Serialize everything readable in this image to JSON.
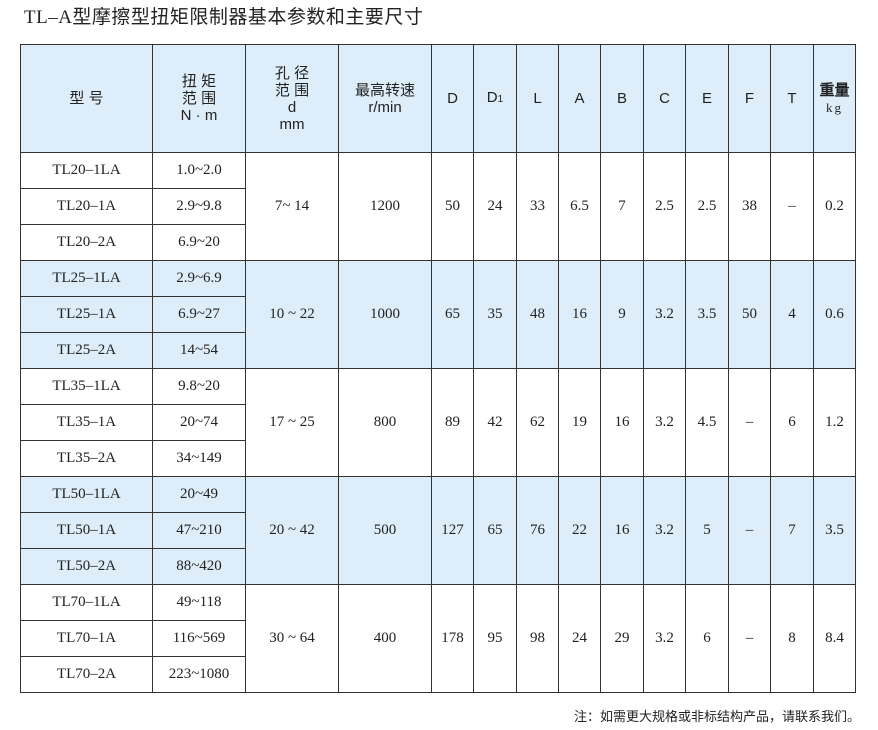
{
  "title": "TL–A型摩擦型扭矩限制器基本参数和主要尺寸",
  "headers": {
    "model": "型 号",
    "torque": [
      "扭 矩",
      "范 围",
      "N · m"
    ],
    "bore": [
      "孔 径",
      "范 围",
      "d",
      "mm"
    ],
    "speed": [
      "最高转速",
      "r/min"
    ],
    "D": "D",
    "D1": "D",
    "D1_sub": "1",
    "L": "L",
    "A": "A",
    "B": "B",
    "C": "C",
    "E": "E",
    "F": "F",
    "T": "T",
    "weight": "重量",
    "weight_unit": "kg"
  },
  "groups": [
    {
      "models": [
        "TL20–1LA",
        "TL20–1A",
        "TL20–2A"
      ],
      "torques": [
        "1.0~2.0",
        "2.9~9.8",
        "6.9~20"
      ],
      "bore": "7~ 14",
      "speed": "1200",
      "D": "50",
      "D1": "24",
      "L": "33",
      "A": "6.5",
      "B": "7",
      "C": "2.5",
      "E": "2.5",
      "F": "38",
      "T": "–",
      "weight": "0.2"
    },
    {
      "models": [
        "TL25–1LA",
        "TL25–1A",
        "TL25–2A"
      ],
      "torques": [
        "2.9~6.9",
        "6.9~27",
        "14~54"
      ],
      "bore": "10 ~ 22",
      "speed": "1000",
      "D": "65",
      "D1": "35",
      "L": "48",
      "A": "16",
      "B": "9",
      "C": "3.2",
      "E": "3.5",
      "F": "50",
      "T": "4",
      "weight": "0.6"
    },
    {
      "models": [
        "TL35–1LA",
        "TL35–1A",
        "TL35–2A"
      ],
      "torques": [
        "9.8~20",
        "20~74",
        "34~149"
      ],
      "bore": "17 ~ 25",
      "speed": "800",
      "D": "89",
      "D1": "42",
      "L": "62",
      "A": "19",
      "B": "16",
      "C": "3.2",
      "E": "4.5",
      "F": "–",
      "T": "6",
      "weight": "1.2"
    },
    {
      "models": [
        "TL50–1LA",
        "TL50–1A",
        "TL50–2A"
      ],
      "torques": [
        "20~49",
        "47~210",
        "88~420"
      ],
      "bore": "20 ~ 42",
      "speed": "500",
      "D": "127",
      "D1": "65",
      "L": "76",
      "A": "22",
      "B": "16",
      "C": "3.2",
      "E": "5",
      "F": "–",
      "T": "7",
      "weight": "3.5"
    },
    {
      "models": [
        "TL70–1LA",
        "TL70–1A",
        "TL70–2A"
      ],
      "torques": [
        "49~118",
        "116~569",
        "223~1080"
      ],
      "bore": "30 ~ 64",
      "speed": "400",
      "D": "178",
      "D1": "95",
      "L": "98",
      "A": "24",
      "B": "29",
      "C": "3.2",
      "E": "6",
      "F": "–",
      "T": "8",
      "weight": "8.4"
    }
  ],
  "note": "注：如需更大规格或非标结构产品，请联系我们。"
}
